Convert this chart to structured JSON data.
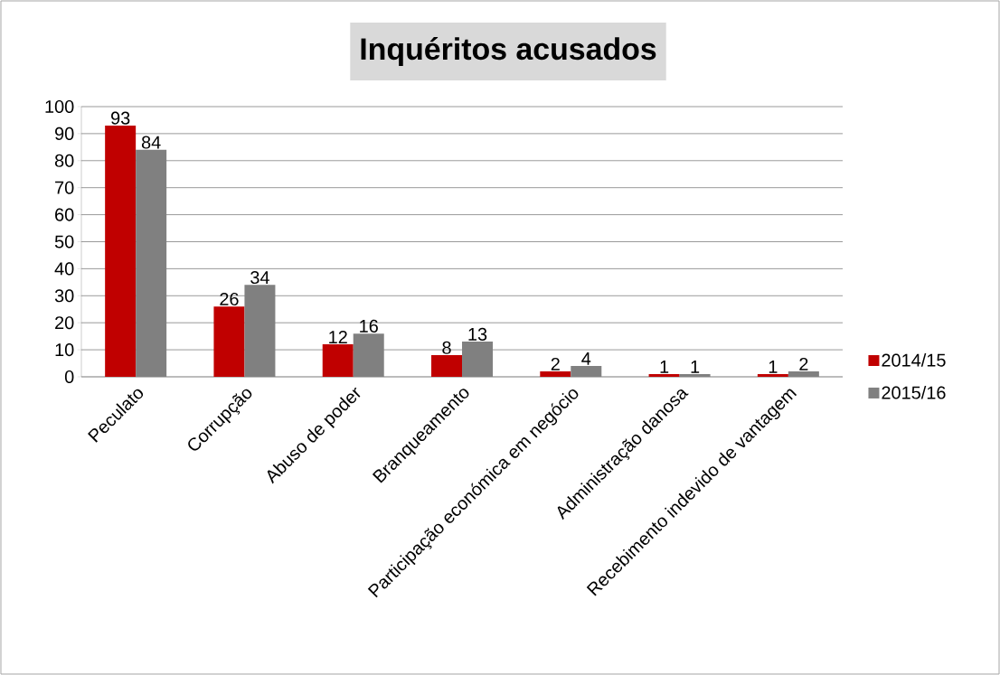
{
  "chart_data": {
    "type": "bar",
    "title": "Inquéritos acusados",
    "categories": [
      "Peculato",
      "Corrupção",
      "Abuso de poder",
      "Branqueamento",
      "Participação económica em negócio",
      "Administração danosa",
      "Recebimento indevido de vantagem"
    ],
    "series": [
      {
        "name": "2014/15",
        "color": "#c00000",
        "values": [
          93,
          26,
          12,
          8,
          2,
          1,
          1
        ]
      },
      {
        "name": "2015/16",
        "color": "#808080",
        "values": [
          84,
          34,
          16,
          13,
          4,
          1,
          2
        ]
      }
    ],
    "ylim": [
      0,
      100
    ],
    "yticks": [
      0,
      10,
      20,
      30,
      40,
      50,
      60,
      70,
      80,
      90,
      100
    ],
    "grid": "y",
    "legend": "right",
    "data_labels": true
  }
}
